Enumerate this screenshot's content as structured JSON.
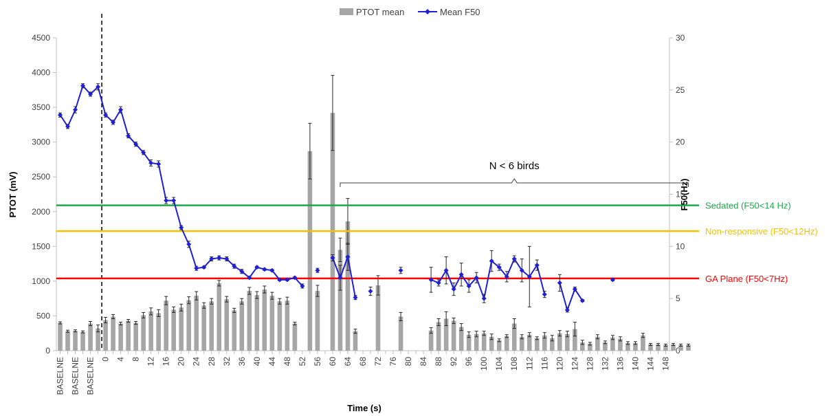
{
  "chart_data": {
    "type": "bar+line",
    "xlabel": "Time (s)",
    "ylabel_left": "PTOT (mV)",
    "ylabel_right": "F50(Hz)",
    "ylim_left": [
      0,
      4500
    ],
    "yticks_left": [
      0,
      500,
      1000,
      1500,
      2000,
      2500,
      3000,
      3500,
      4000,
      4500
    ],
    "ylim_right": [
      0,
      30
    ],
    "yticks_right": [
      0,
      5,
      10,
      15,
      20,
      25,
      30
    ],
    "legend": {
      "position": "top-center",
      "bar_label": "PTOT mean",
      "line_label": "Mean F50"
    },
    "colors": {
      "bar": "#a6a6a6",
      "line": "#1f1fd6",
      "sedated": "#1fa84a",
      "nonresponsive": "#f5c000",
      "ga": "#ff0000"
    },
    "categories": [
      "BASELNE",
      "",
      "BASELNE",
      "",
      "BASELNE",
      "",
      "0",
      "",
      "4",
      "",
      "8",
      "",
      "12",
      "",
      "16",
      "",
      "20",
      "",
      "24",
      "",
      "28",
      "",
      "32",
      "",
      "36",
      "",
      "40",
      "",
      "44",
      "",
      "48",
      "",
      "52",
      "",
      "56",
      "",
      "60",
      "",
      "64",
      "",
      "68",
      "",
      "72",
      "",
      "76",
      "",
      "80",
      "",
      "84",
      "",
      "88",
      "",
      "92",
      "",
      "96",
      "",
      "100",
      "",
      "104",
      "",
      "108",
      "",
      "112",
      "",
      "116",
      "",
      "120",
      "",
      "124",
      "",
      "128",
      "",
      "132",
      "",
      "136",
      "",
      "140",
      "",
      "144",
      "",
      "148"
    ],
    "ptot_mean": [
      400,
      280,
      285,
      270,
      390,
      320,
      440,
      490,
      390,
      430,
      400,
      510,
      565,
      540,
      720,
      590,
      620,
      725,
      790,
      650,
      710,
      970,
      740,
      580,
      710,
      860,
      800,
      880,
      790,
      710,
      720,
      390,
      null,
      2870,
      860,
      null,
      3420,
      1450,
      1860,
      280,
      null,
      null,
      940,
      null,
      null,
      490,
      null,
      null,
      null,
      290,
      410,
      460,
      430,
      340,
      230,
      240,
      250,
      200,
      150,
      210,
      390,
      200,
      230,
      180,
      220,
      180,
      250,
      240,
      310,
      120,
      100,
      200,
      120,
      190,
      170,
      110,
      110,
      220,
      90,
      90,
      80,
      90,
      80,
      80
    ],
    "ptot_err": [
      15,
      15,
      15,
      15,
      30,
      50,
      40,
      30,
      20,
      20,
      20,
      40,
      50,
      50,
      60,
      40,
      50,
      50,
      60,
      40,
      40,
      40,
      40,
      30,
      40,
      50,
      50,
      50,
      50,
      40,
      50,
      20,
      null,
      400,
      80,
      null,
      540,
      170,
      330,
      30,
      null,
      null,
      140,
      null,
      null,
      60,
      null,
      null,
      null,
      40,
      50,
      100,
      40,
      50,
      40,
      40,
      30,
      40,
      20,
      20,
      70,
      30,
      30,
      20,
      40,
      40,
      40,
      40,
      100,
      30,
      20,
      30,
      20,
      30,
      30,
      20,
      20,
      30,
      15,
      15,
      15,
      15,
      15,
      15
    ],
    "f50_mean": [
      22.6,
      21.5,
      23.1,
      25.4,
      24.6,
      25.3,
      22.6,
      21.9,
      23.1,
      20.6,
      19.8,
      19.0,
      18.0,
      17.9,
      14.4,
      14.4,
      11.8,
      10.2,
      7.9,
      8.0,
      8.8,
      8.9,
      8.8,
      8.1,
      7.6,
      7.0,
      8.0,
      7.8,
      7.7,
      6.8,
      6.8,
      7.0,
      6.2,
      null,
      7.7,
      null,
      8.9,
      7.0,
      9.0,
      5.1,
      null,
      5.7,
      null,
      null,
      null,
      7.7,
      null,
      null,
      null,
      6.8,
      6.5,
      7.7,
      5.9,
      7.3,
      6.2,
      7.0,
      5.0,
      8.6,
      8.0,
      7.1,
      8.8,
      7.7,
      7.1,
      8.2,
      5.4,
      null,
      6.5,
      3.9,
      5.9,
      4.8,
      null,
      null,
      null,
      6.8,
      null,
      null,
      null,
      null,
      null,
      null,
      null,
      null,
      null,
      null
    ],
    "f50_err": [
      0.2,
      0.2,
      0.3,
      0.2,
      0.2,
      0.3,
      0.2,
      0.2,
      0.3,
      0.2,
      0.2,
      0.2,
      0.3,
      0.3,
      0.3,
      0.3,
      0.2,
      0.3,
      0.2,
      0.1,
      0.2,
      0.2,
      0.2,
      0.2,
      0.2,
      0.1,
      0.1,
      0.1,
      0.1,
      0.1,
      0.1,
      0.1,
      0.2,
      null,
      0.2,
      null,
      0.3,
      1.2,
      1.3,
      0.2,
      null,
      0.4,
      null,
      null,
      null,
      0.3,
      null,
      null,
      null,
      1.2,
      0.3,
      1.3,
      0.6,
      1.1,
      0.6,
      0.5,
      0.4,
      1.0,
      0.3,
      0.5,
      0.3,
      1.1,
      2.9,
      0.5,
      0.3,
      null,
      0.8,
      0.2,
      0.2,
      0.1,
      null,
      null,
      null,
      0.1,
      null,
      null,
      null,
      null,
      null,
      null,
      null,
      null,
      null,
      null
    ],
    "reference_lines": [
      {
        "label": "Sedated (F50<14 Hz)",
        "value_left": 2090,
        "color": "#1fa84a"
      },
      {
        "label": "Non-responsive (F50<12Hz)",
        "value_left": 1720,
        "color": "#f5c000"
      },
      {
        "label": "GA Plane (F50<7Hz)",
        "value_left": 1040,
        "color": "#ff0000"
      }
    ],
    "annotations": [
      {
        "text": "N < 6 birds",
        "from_index": 37,
        "to_index": 83
      }
    ],
    "dashed_marker_after_index": 5
  }
}
